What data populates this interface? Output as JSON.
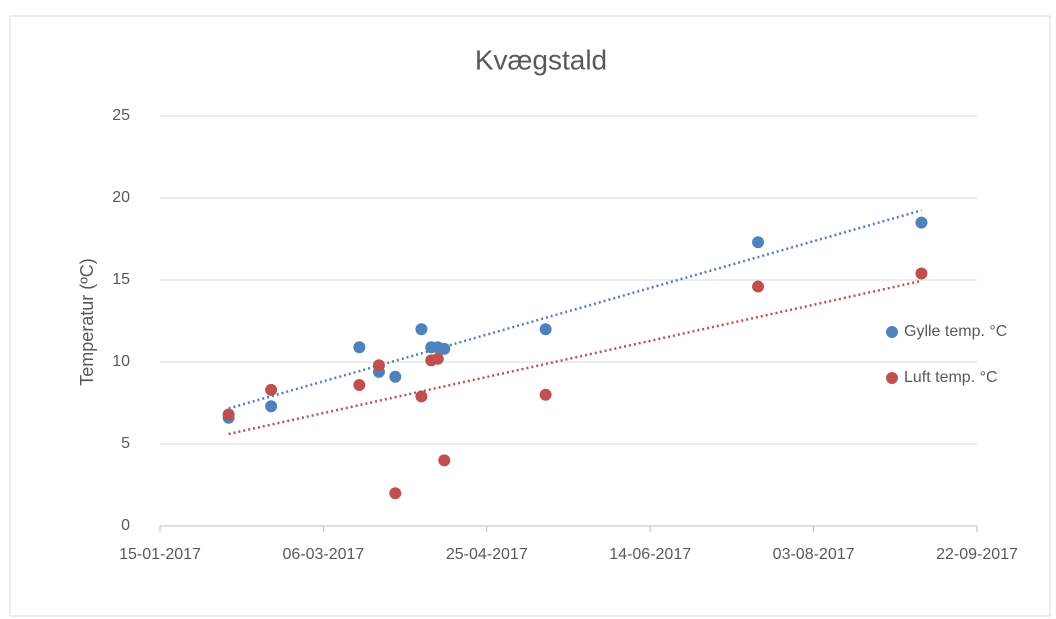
{
  "chart_data": {
    "type": "scatter",
    "title": "Kvægstald",
    "y_label": "Temperatur (ºC)",
    "xlim": [
      "2017-01-15",
      "2017-09-22"
    ],
    "xticks": [
      {
        "value": "2017-01-15",
        "label": "15-01-2017"
      },
      {
        "value": "2017-03-06",
        "label": "06-03-2017"
      },
      {
        "value": "2017-04-25",
        "label": "25-04-2017"
      },
      {
        "value": "2017-06-14",
        "label": "14-06-2017"
      },
      {
        "value": "2017-08-03",
        "label": "03-08-2017"
      },
      {
        "value": "2017-09-22",
        "label": "22-09-2017"
      }
    ],
    "ylim": [
      0,
      25
    ],
    "yticks": [
      0,
      5,
      10,
      15,
      20,
      25
    ],
    "grid": true,
    "legend": "right",
    "trendline": "linear",
    "x": [
      "2017-02-05",
      "2017-02-18",
      "2017-03-17",
      "2017-03-23",
      "2017-03-28",
      "2017-04-05",
      "2017-04-08",
      "2017-04-10",
      "2017-04-12",
      "2017-05-13",
      "2017-07-17",
      "2017-09-05"
    ],
    "series": [
      {
        "name": "Gylle temp. °C",
        "color": "#4f81bd",
        "values": [
          6.6,
          7.3,
          10.9,
          9.4,
          9.1,
          12.0,
          10.9,
          10.9,
          10.8,
          12.0,
          17.3,
          18.5
        ]
      },
      {
        "name": "Luft temp. °C",
        "color": "#c0504d",
        "values": [
          6.8,
          8.3,
          8.6,
          9.8,
          2.0,
          7.9,
          10.1,
          10.2,
          4.0,
          8.0,
          14.6,
          15.4
        ]
      }
    ]
  }
}
